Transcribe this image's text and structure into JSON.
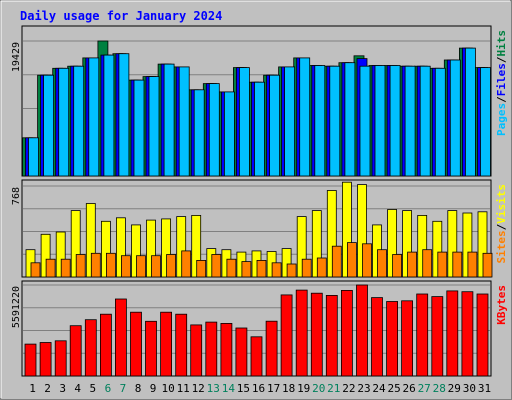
{
  "chart_data": {
    "type": "bar",
    "title": "Daily usage for January 2024",
    "categories": [
      "1",
      "2",
      "3",
      "4",
      "5",
      "6",
      "7",
      "8",
      "9",
      "10",
      "11",
      "12",
      "13",
      "14",
      "15",
      "16",
      "17",
      "18",
      "19",
      "20",
      "21",
      "22",
      "23",
      "24",
      "25",
      "26",
      "27",
      "28",
      "29",
      "30",
      "31"
    ],
    "weekend_days": [
      "6",
      "7",
      "13",
      "14",
      "20",
      "21",
      "27",
      "28"
    ],
    "panels": [
      {
        "key": "traffic",
        "ymax_label": "19429",
        "ymax": 19429,
        "legend": [
          "Pages",
          "/",
          "Files",
          "/",
          "Hits"
        ],
        "series": [
          {
            "name": "Hits",
            "color": "#008040",
            "values": [
              5500,
              14500,
              15500,
              15800,
              17000,
              19429,
              17600,
              13800,
              14300,
              16100,
              15700,
              12400,
              13300,
              12100,
              15600,
              13500,
              14500,
              15700,
              17000,
              15900,
              15800,
              16300,
              17300,
              15900,
              15900,
              15800,
              15800,
              15500,
              16700,
              18400,
              15600
            ]
          },
          {
            "name": "Files",
            "color": "#0000ff",
            "values": [
              5500,
              14500,
              15500,
              15800,
              17000,
              17400,
              17600,
              13800,
              14300,
              16100,
              15700,
              12400,
              13300,
              12100,
              15600,
              13500,
              14500,
              15700,
              17000,
              15900,
              15800,
              16300,
              16900,
              15900,
              15900,
              15800,
              15800,
              15500,
              16700,
              18400,
              15600
            ]
          },
          {
            "name": "Pages",
            "color": "#00c0ff",
            "values": [
              5500,
              14500,
              15500,
              15800,
              17000,
              17400,
              17600,
              13800,
              14300,
              16100,
              15700,
              12400,
              13300,
              12100,
              15600,
              13500,
              14500,
              15700,
              17000,
              15900,
              15800,
              16300,
              15800,
              15900,
              15900,
              15800,
              15800,
              15500,
              16700,
              18400,
              15600
            ]
          }
        ]
      },
      {
        "key": "visits",
        "ymax_label": "768",
        "ymax": 768,
        "legend": [
          "Sites",
          "/",
          "Visits"
        ],
        "series": [
          {
            "name": "Visits",
            "color": "#ffff00",
            "values": [
              230,
              360,
              380,
              560,
              620,
              470,
              500,
              440,
              480,
              490,
              510,
              520,
              240,
              230,
              210,
              220,
              215,
              240,
              510,
              560,
              730,
              800,
              780,
              440,
              570,
              560,
              520,
              470,
              560,
              540,
              550
            ]
          },
          {
            "name": "Sites",
            "color": "#ff8000",
            "values": [
              120,
              150,
              150,
              190,
              200,
              200,
              180,
              180,
              180,
              190,
              220,
              140,
              190,
              150,
              130,
              140,
              120,
              110,
              150,
              160,
              260,
              290,
              280,
              230,
              190,
              210,
              230,
              210,
              210,
              210,
              200
            ]
          }
        ]
      },
      {
        "key": "kbytes",
        "ymax_label": "5591220",
        "ymax": 5591220,
        "legend": [
          "KBytes"
        ],
        "series": [
          {
            "name": "KBytes",
            "color": "#ff0000",
            "values": [
              1960000,
              2060000,
              2160000,
              3090000,
              3460000,
              3800000,
              4730000,
              3920000,
              3360000,
              3920000,
              3800000,
              3140000,
              3310000,
              3230000,
              2950000,
              2410000,
              3370000,
              4980000,
              5280000,
              5090000,
              4950000,
              5260000,
              5591220,
              4820000,
              4580000,
              4620000,
              5040000,
              4880000,
              5230000,
              5180000,
              5040000
            ]
          }
        ]
      }
    ],
    "colors": {
      "background": "#c0c0c0",
      "title": "#0000ff",
      "axis_label": "#000000",
      "day_weekday": "#000000",
      "day_weekend": "#00805c"
    }
  }
}
